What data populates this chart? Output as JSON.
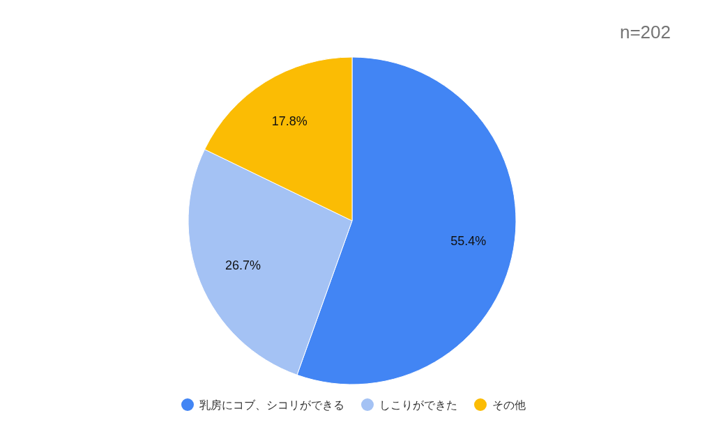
{
  "chart_data": {
    "type": "pie",
    "title": "n=202",
    "categories": [
      "乳房にコブ、シコリができる",
      "しこりができた",
      "その他"
    ],
    "values": [
      55.4,
      26.7,
      17.8
    ],
    "colors": [
      "#4285f4",
      "#a4c2f4",
      "#fbbc04"
    ],
    "value_labels": [
      "55.4%",
      "26.7%",
      "17.8%"
    ],
    "legend": "bottom"
  }
}
